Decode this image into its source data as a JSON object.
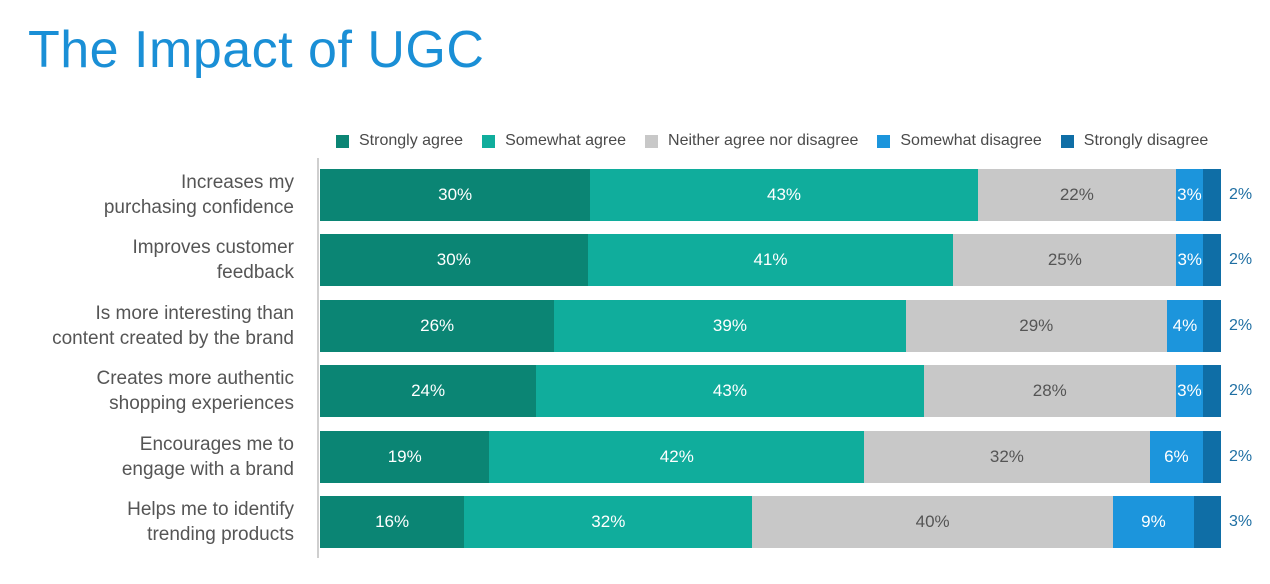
{
  "title": "The Impact of UGC",
  "colors": {
    "strongly_agree": "#0b8574",
    "somewhat_agree": "#10ad9c",
    "neutral": "#c8c8c8",
    "somewhat_disagree": "#1c95dc",
    "strongly_disagree": "#0f6ea6",
    "title": "#1a8fd6"
  },
  "chart_data": {
    "type": "bar",
    "orientation": "horizontal",
    "stacked": true,
    "title": "The Impact of UGC",
    "legend_position": "top",
    "series_names": [
      "Strongly agree",
      "Somewhat agree",
      "Neither agree nor disagree",
      "Somewhat disagree",
      "Strongly disagree"
    ],
    "rows": [
      {
        "label_lines": [
          "Increases my",
          "purchasing confidence"
        ],
        "values": [
          30,
          43,
          22,
          3,
          2
        ],
        "labels": [
          "30%",
          "43%",
          "22%",
          "3%",
          "2%"
        ]
      },
      {
        "label_lines": [
          "Improves customer",
          "feedback"
        ],
        "values": [
          30,
          41,
          25,
          3,
          2
        ],
        "labels": [
          "30%",
          "41%",
          "25%",
          "3%",
          "2%"
        ]
      },
      {
        "label_lines": [
          "Is more interesting than",
          "content created by the brand"
        ],
        "values": [
          26,
          39,
          29,
          4,
          2
        ],
        "labels": [
          "26%",
          "39%",
          "29%",
          "4%",
          "2%"
        ]
      },
      {
        "label_lines": [
          "Creates more authentic",
          "shopping experiences"
        ],
        "values": [
          24,
          43,
          28,
          3,
          2
        ],
        "labels": [
          "24%",
          "43%",
          "28%",
          "3%",
          "2%"
        ]
      },
      {
        "label_lines": [
          "Encourages me to",
          "engage with a brand"
        ],
        "values": [
          19,
          42,
          32,
          6,
          2
        ],
        "labels": [
          "19%",
          "42%",
          "32%",
          "6%",
          "2%"
        ]
      },
      {
        "label_lines": [
          "Helps me to identify",
          "trending products"
        ],
        "values": [
          16,
          32,
          40,
          9,
          3
        ],
        "labels": [
          "16%",
          "32%",
          "40%",
          "9%",
          "3%"
        ]
      }
    ]
  }
}
